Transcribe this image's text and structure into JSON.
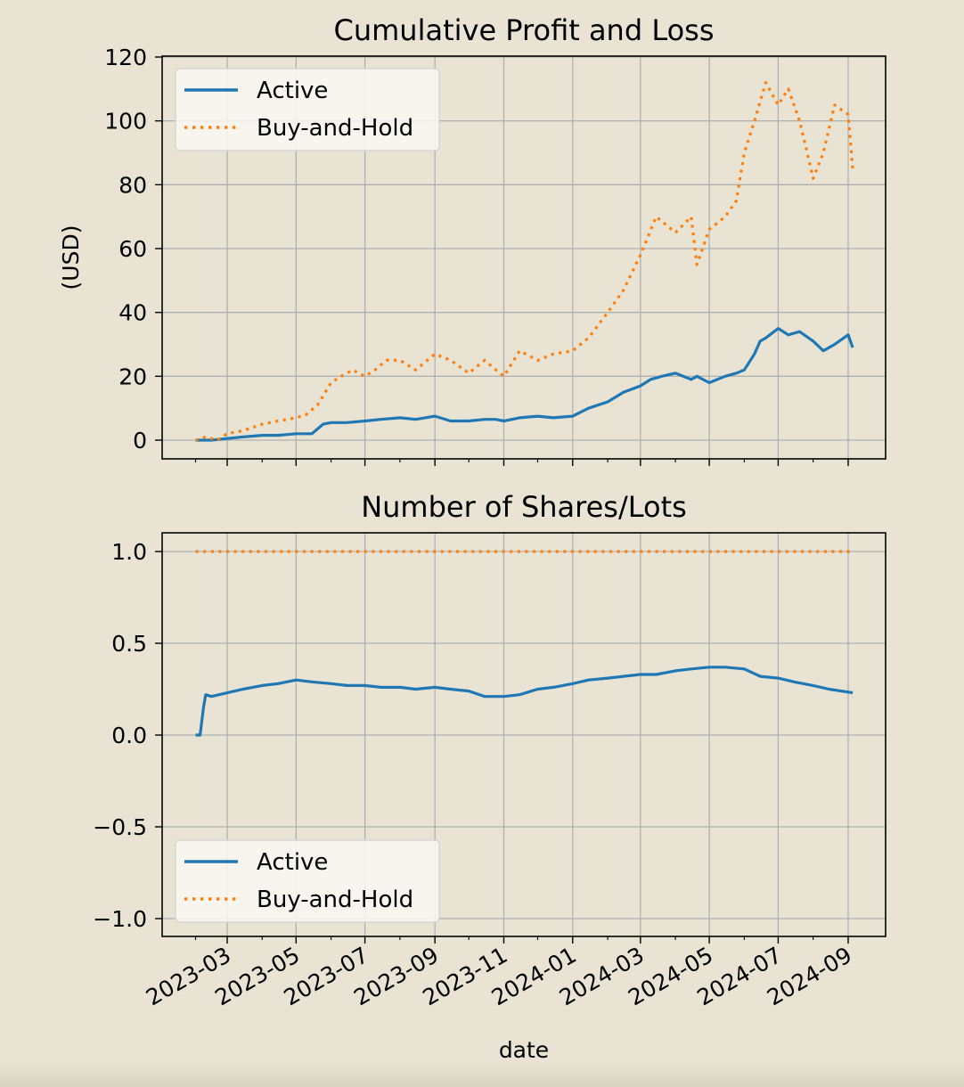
{
  "figure": {
    "background": "#e9e3d4",
    "plot_background": "#e9e3d4",
    "grid_color": "#b0b0b0"
  },
  "chart_data": [
    {
      "type": "line",
      "title": "Cumulative Profit and Loss",
      "xlabel": "",
      "ylabel": "(USD)",
      "ylim": [
        -6,
        120
      ],
      "yticks": [
        0,
        20,
        40,
        60,
        80,
        100,
        120
      ],
      "ytick_labels": [
        "0",
        "20",
        "40",
        "60",
        "80",
        "100",
        "120"
      ],
      "xticks": [
        "2023-03",
        "2023-05",
        "2023-07",
        "2023-09",
        "2023-11",
        "2024-01",
        "2024-03",
        "2024-05",
        "2024-07",
        "2024-09"
      ],
      "grid": true,
      "legend": {
        "position": "upper left",
        "entries": [
          "Active",
          "Buy-and-Hold"
        ]
      },
      "series": [
        {
          "name": "Active",
          "color": "#1f77b4",
          "style": "solid",
          "x": [
            "2023-02-01",
            "2023-02-15",
            "2023-03-01",
            "2023-03-15",
            "2023-04-01",
            "2023-04-15",
            "2023-05-01",
            "2023-05-15",
            "2023-05-25",
            "2023-06-01",
            "2023-06-15",
            "2023-07-01",
            "2023-07-15",
            "2023-08-01",
            "2023-08-15",
            "2023-09-01",
            "2023-09-15",
            "2023-10-01",
            "2023-10-15",
            "2023-10-25",
            "2023-11-01",
            "2023-11-15",
            "2023-12-01",
            "2023-12-15",
            "2024-01-01",
            "2024-01-15",
            "2024-02-01",
            "2024-02-15",
            "2024-03-01",
            "2024-03-10",
            "2024-03-20",
            "2024-04-01",
            "2024-04-15",
            "2024-04-20",
            "2024-05-01",
            "2024-05-15",
            "2024-05-25",
            "2024-06-01",
            "2024-06-10",
            "2024-06-15",
            "2024-06-20",
            "2024-07-01",
            "2024-07-10",
            "2024-07-20",
            "2024-08-01",
            "2024-08-10",
            "2024-08-20",
            "2024-09-01",
            "2024-09-05"
          ],
          "y": [
            0,
            0,
            0.5,
            1,
            1.5,
            1.5,
            2,
            2,
            5,
            5.5,
            5.5,
            6,
            6.5,
            7,
            6.5,
            7.5,
            6,
            6,
            6.5,
            6.5,
            6,
            7,
            7.5,
            7,
            7.5,
            10,
            12,
            15,
            17,
            19,
            20,
            21,
            19,
            20,
            18,
            20,
            21,
            22,
            27,
            31,
            32,
            35,
            33,
            34,
            31,
            28,
            30,
            33,
            29
          ]
        },
        {
          "name": "Buy-and-Hold",
          "color": "#ff7f0e",
          "style": "dotted",
          "x": [
            "2023-02-01",
            "2023-02-10",
            "2023-02-20",
            "2023-03-01",
            "2023-03-15",
            "2023-04-01",
            "2023-04-15",
            "2023-05-01",
            "2023-05-10",
            "2023-05-20",
            "2023-06-01",
            "2023-06-10",
            "2023-06-20",
            "2023-07-01",
            "2023-07-10",
            "2023-07-20",
            "2023-08-01",
            "2023-08-15",
            "2023-09-01",
            "2023-09-15",
            "2023-10-01",
            "2023-10-15",
            "2023-10-25",
            "2023-11-01",
            "2023-11-15",
            "2023-12-01",
            "2023-12-15",
            "2024-01-01",
            "2024-01-15",
            "2024-02-01",
            "2024-02-15",
            "2024-03-01",
            "2024-03-15",
            "2024-04-01",
            "2024-04-15",
            "2024-04-20",
            "2024-05-01",
            "2024-05-15",
            "2024-05-25",
            "2024-06-01",
            "2024-06-10",
            "2024-06-20",
            "2024-07-01",
            "2024-07-10",
            "2024-07-20",
            "2024-08-01",
            "2024-08-10",
            "2024-08-20",
            "2024-09-01",
            "2024-09-05"
          ],
          "y": [
            0,
            1,
            0,
            2,
            3,
            5,
            6,
            7,
            8,
            11,
            18,
            20,
            22,
            20,
            22,
            25,
            25,
            22,
            27,
            25,
            21,
            25,
            22,
            20,
            28,
            25,
            27,
            28,
            32,
            40,
            47,
            58,
            70,
            65,
            70,
            55,
            66,
            70,
            75,
            90,
            100,
            112,
            105,
            110,
            100,
            82,
            90,
            105,
            102,
            85
          ]
        }
      ]
    },
    {
      "type": "line",
      "title": "Number of Shares/Lots",
      "xlabel": "date",
      "ylabel": "",
      "ylim": [
        -1.1,
        1.1
      ],
      "yticks": [
        -1.0,
        -0.5,
        0.0,
        0.5,
        1.0
      ],
      "ytick_labels": [
        "−1.0",
        "−0.5",
        "0.0",
        "0.5",
        "1.0"
      ],
      "xticks": [
        "2023-03",
        "2023-05",
        "2023-07",
        "2023-09",
        "2023-11",
        "2024-01",
        "2024-03",
        "2024-05",
        "2024-07",
        "2024-09"
      ],
      "grid": true,
      "legend": {
        "position": "lower left",
        "entries": [
          "Active",
          "Buy-and-Hold"
        ]
      },
      "series": [
        {
          "name": "Active",
          "color": "#1f77b4",
          "style": "solid",
          "x": [
            "2023-02-01",
            "2023-02-05",
            "2023-02-08",
            "2023-02-10",
            "2023-02-15",
            "2023-03-01",
            "2023-03-15",
            "2023-04-01",
            "2023-04-15",
            "2023-05-01",
            "2023-05-15",
            "2023-06-01",
            "2023-06-15",
            "2023-07-01",
            "2023-07-15",
            "2023-08-01",
            "2023-08-15",
            "2023-09-01",
            "2023-09-15",
            "2023-10-01",
            "2023-10-15",
            "2023-11-01",
            "2023-11-15",
            "2023-12-01",
            "2023-12-15",
            "2024-01-01",
            "2024-01-15",
            "2024-02-01",
            "2024-02-15",
            "2024-03-01",
            "2024-03-15",
            "2024-04-01",
            "2024-04-15",
            "2024-05-01",
            "2024-05-15",
            "2024-06-01",
            "2024-06-15",
            "2024-07-01",
            "2024-07-15",
            "2024-08-01",
            "2024-08-15",
            "2024-09-05"
          ],
          "y": [
            0,
            0,
            0.15,
            0.22,
            0.21,
            0.23,
            0.25,
            0.27,
            0.28,
            0.3,
            0.29,
            0.28,
            0.27,
            0.27,
            0.26,
            0.26,
            0.25,
            0.26,
            0.25,
            0.24,
            0.21,
            0.21,
            0.22,
            0.25,
            0.26,
            0.28,
            0.3,
            0.31,
            0.32,
            0.33,
            0.33,
            0.35,
            0.36,
            0.37,
            0.37,
            0.36,
            0.32,
            0.31,
            0.29,
            0.27,
            0.25,
            0.23
          ]
        },
        {
          "name": "Buy-and-Hold",
          "color": "#ff7f0e",
          "style": "dotted",
          "x": [
            "2023-02-01",
            "2024-09-05"
          ],
          "y": [
            1.0,
            1.0
          ]
        }
      ]
    }
  ]
}
